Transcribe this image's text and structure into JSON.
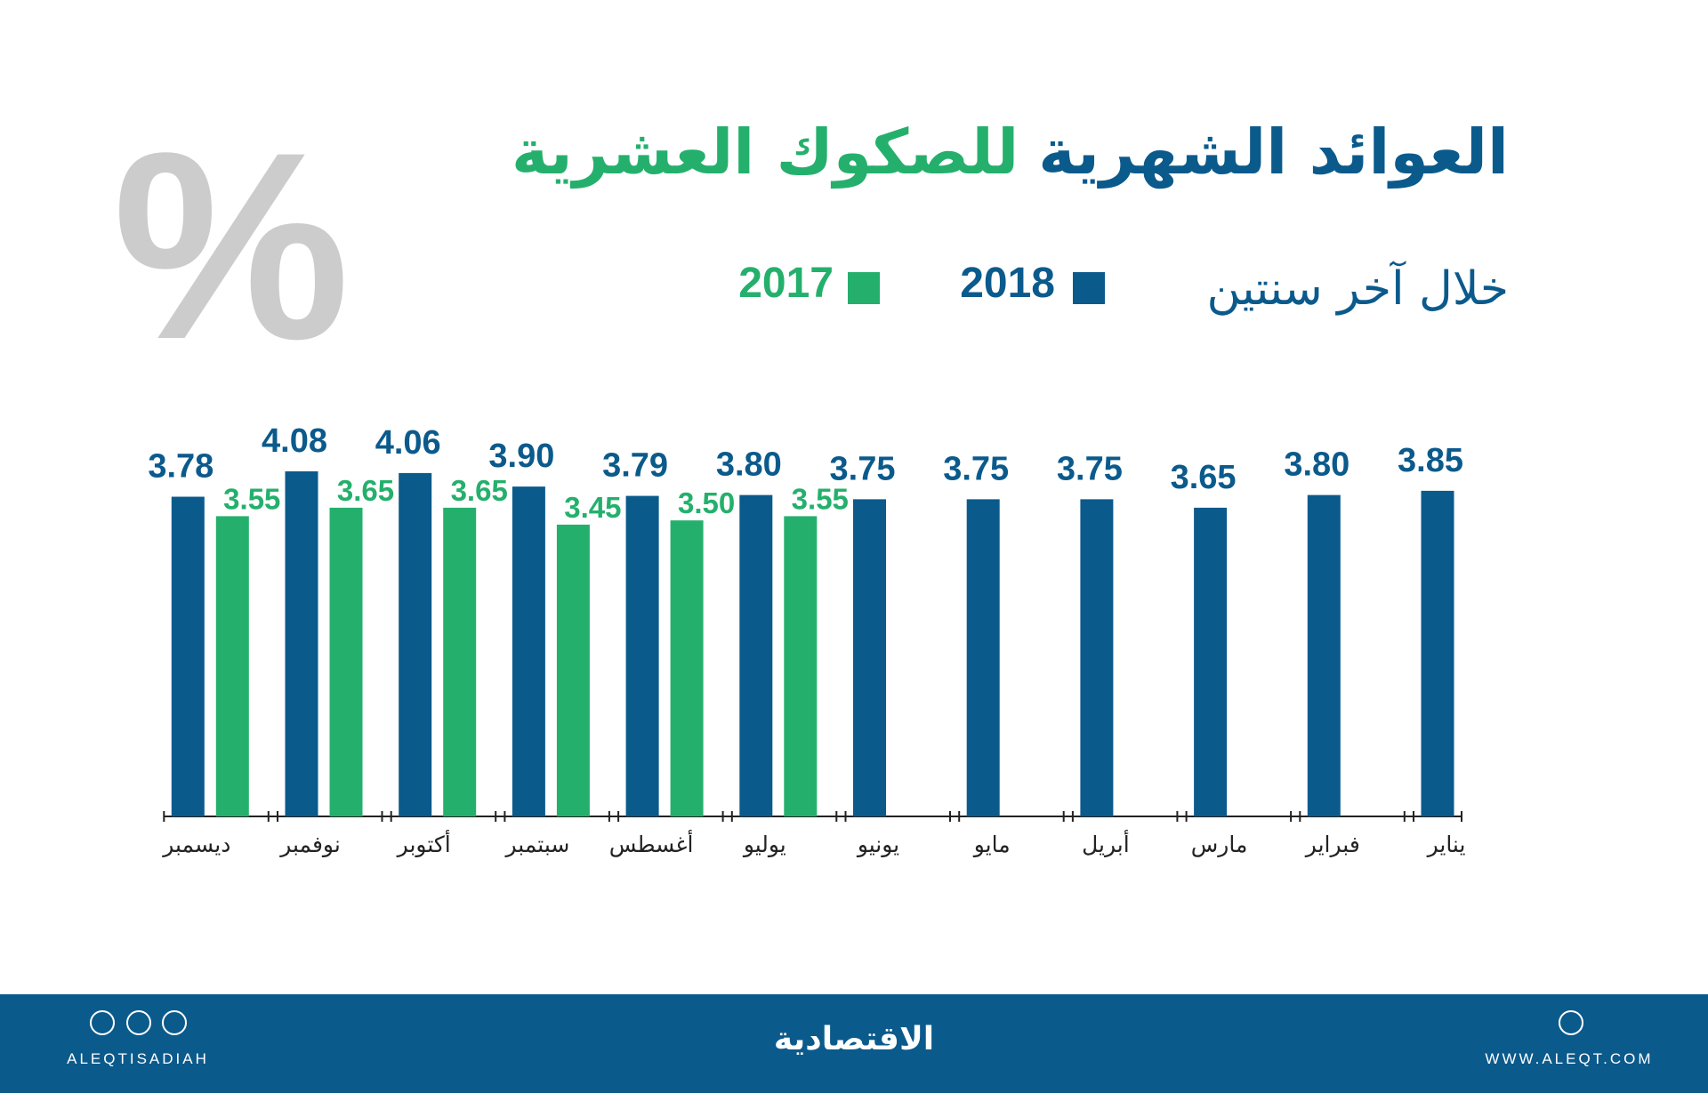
{
  "chart_data": {
    "type": "bar",
    "title": {
      "main": "العوائد الشهرية",
      "highlight": "للصكوك العشرية"
    },
    "subtitle": "خلال آخر سنتين",
    "unit_symbol": "%",
    "categories": [
      "يناير",
      "فبراير",
      "مارس",
      "أبريل",
      "مايو",
      "يونيو",
      "يوليو",
      "أغسطس",
      "سبتمبر",
      "أكتوبر",
      "نوفمبر",
      "ديسمبر"
    ],
    "series": [
      {
        "name": "2018",
        "color": "#0b5a8c",
        "values": [
          3.85,
          3.8,
          3.65,
          3.75,
          3.75,
          3.75,
          3.8,
          3.79,
          3.9,
          4.06,
          4.08,
          3.78
        ],
        "value_labels": [
          "3.85",
          "3.80",
          "3.65",
          "3.75",
          "3.75",
          "3.75",
          "3.80",
          "3.79",
          "3.90",
          "4.06",
          "4.08",
          "3.78"
        ]
      },
      {
        "name": "2017",
        "color": "#24b06c",
        "values": [
          null,
          null,
          null,
          null,
          null,
          null,
          3.55,
          3.5,
          3.45,
          3.65,
          3.65,
          3.55
        ],
        "value_labels": [
          null,
          null,
          null,
          null,
          null,
          null,
          "3.55",
          "3.50",
          "3.45",
          "3.65",
          "3.65",
          "3.55"
        ]
      }
    ]
  },
  "footer": {
    "brand": "الاقتصادية",
    "handle": "ALEQTISADIAH",
    "website": "WWW.ALEQT.COM"
  }
}
